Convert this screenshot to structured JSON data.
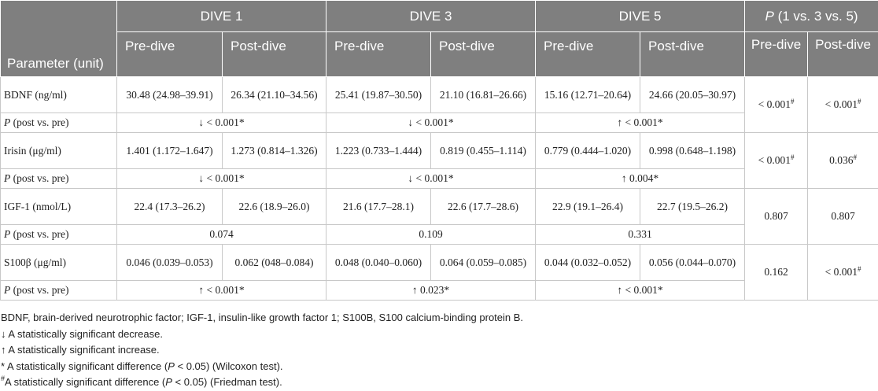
{
  "header": {
    "parameter": "Parameter (unit)",
    "groups": [
      "DIVE 1",
      "DIVE 3",
      "DIVE 5"
    ],
    "p_group": [
      {
        "text": "P",
        "italic": true
      },
      {
        "text": " (1 vs. 3 vs. 5)"
      }
    ],
    "sub": [
      "Pre-dive",
      "Post-dive",
      "Pre-dive",
      "Post-dive",
      "Pre-dive",
      "Post-dive",
      "Pre-dive",
      "Post-dive"
    ]
  },
  "rows": [
    {
      "parameter": "BDNF (ng/ml)",
      "values": [
        "30.48 (24.98–39.91)",
        "26.34 (21.10–34.56)",
        "25.41 (19.87–30.50)",
        "21.10 (16.81–26.66)",
        "15.16 (12.71–20.64)",
        "24.66 (20.05–30.97)"
      ],
      "p_overall": [
        [
          {
            "text": "< 0.001"
          },
          {
            "text": "#",
            "sup": true
          }
        ],
        [
          {
            "text": "< 0.001"
          },
          {
            "text": "#",
            "sup": true
          }
        ]
      ],
      "p_label": [
        {
          "text": "P",
          "italic": true
        },
        {
          "text": " (post vs. pre)"
        }
      ],
      "p_post_pre": [
        "↓ < 0.001*",
        "↓ < 0.001*",
        "↑ < 0.001*"
      ]
    },
    {
      "parameter": "Irisin (μg/ml)",
      "values": [
        "1.401 (1.172–1.647)",
        "1.273 (0.814–1.326)",
        "1.223 (0.733–1.444)",
        "0.819 (0.455–1.114)",
        "0.779 (0.444–1.020)",
        "0.998 (0.648–1.198)"
      ],
      "p_overall": [
        [
          {
            "text": "< 0.001"
          },
          {
            "text": "#",
            "sup": true
          }
        ],
        [
          {
            "text": "0.036"
          },
          {
            "text": "#",
            "sup": true
          }
        ]
      ],
      "p_label": [
        {
          "text": "P",
          "italic": true
        },
        {
          "text": " (post vs. pre)"
        }
      ],
      "p_post_pre": [
        "↓ < 0.001*",
        "↓ < 0.001*",
        "↑ 0.004*"
      ]
    },
    {
      "parameter": "IGF-1 (nmol/L)",
      "values": [
        "22.4 (17.3–26.2)",
        "22.6 (18.9–26.0)",
        "21.6 (17.7–28.1)",
        "22.6 (17.7–28.6)",
        "22.9 (19.1–26.4)",
        "22.7 (19.5–26.2)"
      ],
      "p_overall": [
        [
          {
            "text": "0.807"
          }
        ],
        [
          {
            "text": "0.807"
          }
        ]
      ],
      "p_label": [
        {
          "text": "P",
          "italic": true
        },
        {
          "text": " (post vs. pre)"
        }
      ],
      "p_post_pre": [
        "0.074",
        "0.109",
        "0.331"
      ]
    },
    {
      "parameter": "S100β (μg/ml)",
      "values": [
        "0.046 (0.039–0.053)",
        "0.062 (048–0.084)",
        "0.048 (0.040–0.060)",
        "0.064 (0.059–0.085)",
        "0.044 (0.032–0.052)",
        "0.056 (0.044–0.070)"
      ],
      "p_overall": [
        [
          {
            "text": "0.162"
          }
        ],
        [
          {
            "text": "< 0.001"
          },
          {
            "text": "#",
            "sup": true
          }
        ]
      ],
      "p_label": [
        {
          "text": "P",
          "italic": true
        },
        {
          "text": " (post vs. pre)"
        }
      ],
      "p_post_pre": [
        "↑ < 0.001*",
        "↑ 0.023*",
        "↑ < 0.001*"
      ]
    }
  ],
  "footnotes": [
    [
      {
        "text": "BDNF, brain-derived neurotrophic factor; IGF-1, insulin-like growth factor 1; S100B, S100 calcium-binding protein B."
      }
    ],
    [
      {
        "text": "↓ A statistically significant decrease."
      }
    ],
    [
      {
        "text": "↑ A statistically significant increase."
      }
    ],
    [
      {
        "text": "* A statistically significant difference ("
      },
      {
        "text": "P",
        "italic": true
      },
      {
        "text": " < 0.05) (Wilcoxon test)."
      }
    ],
    [
      {
        "text": "#",
        "sup": true
      },
      {
        "text": "A statistically significant difference ("
      },
      {
        "text": "P",
        "italic": true
      },
      {
        "text": " < 0.05) (Friedman test)."
      }
    ]
  ]
}
